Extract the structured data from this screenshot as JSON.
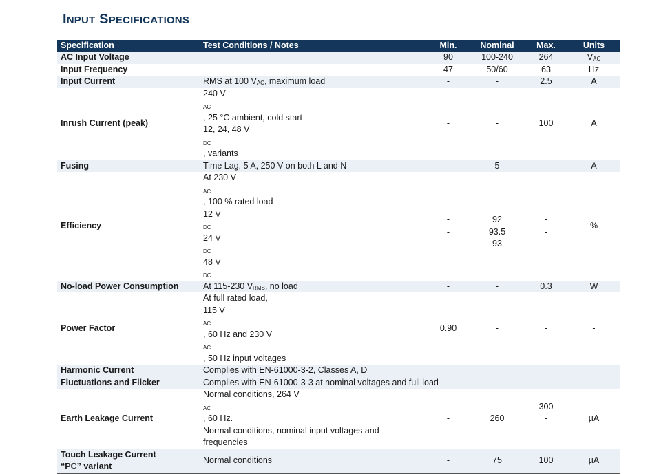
{
  "title": {
    "initial_1": "I",
    "rest_1": "NPUT",
    "initial_2": "S",
    "rest_2": "PECIFICATIONS"
  },
  "table": {
    "headers": {
      "spec": "Specification",
      "notes": "Test Conditions / Notes",
      "min": "Min.",
      "nominal": "Nominal",
      "max": "Max.",
      "units": "Units"
    },
    "rows": {
      "ac_voltage": {
        "name": "AC Input Voltage",
        "min": "90",
        "nominal": "100-240",
        "max": "264",
        "unit_base": "V",
        "unit_sub": "AC"
      },
      "frequency": {
        "name": "Input Frequency",
        "min": "47",
        "nominal": "50/60",
        "max": "63",
        "units": "Hz"
      },
      "current": {
        "name": "Input Current",
        "note_a": "RMS at 100 V",
        "note_sub": "AC",
        "note_b": ", maximum load",
        "min": "-",
        "nominal": "-",
        "max": "2.5",
        "units": "A"
      },
      "inrush": {
        "name": "Inrush Current (peak)",
        "l1_a": "240 V",
        "l1_sub": "AC",
        "l1_b": ", 25 °C ambient, cold start",
        "l2_a": "12, 24, 48 V",
        "l2_sub": "DC",
        "l2_b": ", variants",
        "min": "-",
        "nominal": "-",
        "max": "100",
        "units": "A"
      },
      "fusing": {
        "name": "Fusing",
        "notes": "Time Lag, 5 A, 250 V on both L and N",
        "min": "-",
        "nominal": "5",
        "max": "-",
        "units": "A"
      },
      "efficiency": {
        "name": "Efficiency",
        "l1_a": "At 230 V",
        "l1_sub": "AC",
        "l1_b": ", 100 % rated load",
        "v12": "12 V",
        "v24": "24 V",
        "v48": "48 V",
        "dc": "DC",
        "min": [
          "-",
          "-",
          "-"
        ],
        "nominal": [
          "92",
          "93.5",
          "93"
        ],
        "max": [
          "-",
          "-",
          "-"
        ],
        "units": "%"
      },
      "noload": {
        "name": "No-load Power Consumption",
        "note_a": "At 115-230 V",
        "note_sub": "RMS",
        "note_b": ", no load",
        "min": "-",
        "nominal": "-",
        "max": "0.3",
        "units": "W"
      },
      "power_factor": {
        "name": "Power Factor",
        "l1": "At full rated load,",
        "l2_a": "115 V",
        "l2_sub": "AC",
        "l2_b": ", 60 Hz and 230 V",
        "l2_sub2": "AC",
        "l2_c": ", 50 Hz input voltages",
        "min": "0.90",
        "nominal": "-",
        "max": "-",
        "units": "-"
      },
      "harmonic": {
        "name_1": "Harmonic Current",
        "name_2": "Fluctuations and Flicker",
        "note_1": "Complies with EN-61000-3-2, Classes A, D",
        "note_2": "Complies with EN-61000-3-3 at nominal voltages and full load"
      },
      "earth": {
        "name": "Earth Leakage Current",
        "l1_a": "Normal conditions, 264 V",
        "l1_sub": "AC",
        "l1_b": ", 60 Hz.",
        "l2": "Normal conditions, nominal input voltages and",
        "l3": "frequencies",
        "min": [
          "-",
          "-"
        ],
        "nominal": [
          "-",
          "260"
        ],
        "max": [
          "300",
          "-"
        ],
        "units": "µA"
      },
      "touch": {
        "name_1": "Touch Leakage Current",
        "name_2": "“PC” variant",
        "notes": "Normal conditions",
        "min": "-",
        "nominal": "75",
        "max": "100",
        "units": "µA"
      }
    }
  }
}
